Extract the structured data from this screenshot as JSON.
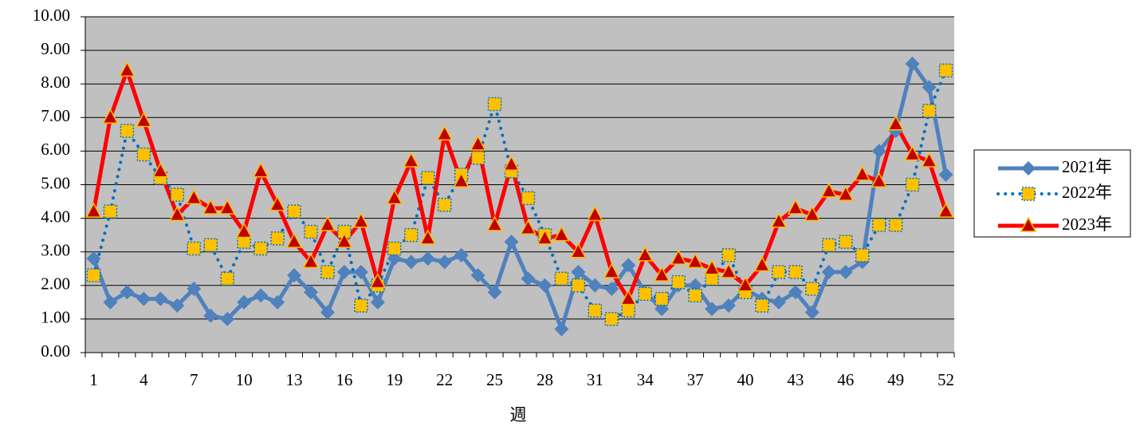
{
  "chart_data": {
    "type": "line",
    "x_label": "週",
    "categories": [
      "1",
      null,
      null,
      "4",
      null,
      null,
      "7",
      null,
      null,
      "10",
      null,
      null,
      "13",
      null,
      null,
      "16",
      null,
      null,
      "19",
      null,
      null,
      "22",
      null,
      null,
      "25",
      null,
      null,
      "28",
      null,
      null,
      "31",
      null,
      null,
      "34",
      null,
      null,
      "37",
      null,
      null,
      "40",
      null,
      null,
      "43",
      null,
      null,
      "46",
      null,
      null,
      "49",
      null,
      null,
      "52"
    ],
    "series": [
      {
        "name": "2021年",
        "color": "#4f81bd",
        "marker": "diamond",
        "style": "solid",
        "values": [
          2.8,
          1.5,
          1.8,
          1.6,
          1.6,
          1.4,
          1.9,
          1.1,
          1.0,
          1.5,
          1.7,
          1.5,
          2.3,
          1.8,
          1.2,
          2.4,
          2.4,
          1.5,
          2.8,
          2.7,
          2.8,
          2.7,
          2.9,
          2.3,
          1.8,
          3.3,
          2.2,
          2.0,
          0.7,
          2.4,
          2.0,
          1.9,
          2.6,
          1.8,
          1.3,
          2.0,
          2.0,
          1.3,
          1.4,
          1.9,
          1.6,
          1.5,
          1.8,
          1.2,
          2.4,
          2.4,
          2.7,
          6.0,
          6.6,
          8.6,
          7.9,
          5.3
        ]
      },
      {
        "name": "2022年",
        "color": "#0070c0",
        "marker": "square",
        "marker_color": "#ffc000",
        "style": "dotted",
        "values": [
          2.3,
          4.2,
          6.6,
          5.9,
          5.2,
          4.7,
          3.1,
          3.2,
          2.2,
          3.3,
          3.1,
          3.4,
          4.2,
          3.6,
          2.4,
          3.6,
          1.4,
          2.0,
          3.1,
          3.5,
          5.2,
          4.4,
          5.3,
          5.8,
          7.4,
          5.4,
          4.6,
          3.5,
          2.2,
          2.0,
          1.25,
          1.0,
          1.25,
          1.75,
          1.6,
          2.1,
          1.7,
          2.2,
          2.9,
          1.8,
          1.4,
          2.4,
          2.4,
          1.9,
          3.2,
          3.3,
          2.9,
          3.8,
          3.8,
          5.0,
          7.2,
          8.4
        ]
      },
      {
        "name": "2023年",
        "color": "#ff0000",
        "marker": "triangle",
        "marker_color": "#c00000",
        "style": "solid",
        "values": [
          4.2,
          7.0,
          8.4,
          6.9,
          5.4,
          4.1,
          4.6,
          4.3,
          4.3,
          3.6,
          5.4,
          4.4,
          3.3,
          2.7,
          3.8,
          3.3,
          3.9,
          2.1,
          4.6,
          5.7,
          3.4,
          6.5,
          5.1,
          6.2,
          3.8,
          5.6,
          3.7,
          3.4,
          3.5,
          3.0,
          4.1,
          2.4,
          1.6,
          2.9,
          2.3,
          2.8,
          2.7,
          2.5,
          2.4,
          2.0,
          2.6,
          3.9,
          4.3,
          4.1,
          4.8,
          4.7,
          5.3,
          5.1,
          6.8,
          5.9,
          5.7,
          4.2
        ]
      }
    ],
    "ylim": [
      0,
      10
    ],
    "yticks": [
      {
        "value": 0,
        "label": "0.00"
      },
      {
        "value": 1,
        "label": "1.00"
      },
      {
        "value": 2,
        "label": "2.00"
      },
      {
        "value": 3,
        "label": "3.00"
      },
      {
        "value": 4,
        "label": "4.00"
      },
      {
        "value": 5,
        "label": "5.00"
      },
      {
        "value": 6,
        "label": "6.00"
      },
      {
        "value": 7,
        "label": "7.00"
      },
      {
        "value": 8,
        "label": "8.00"
      },
      {
        "value": 9,
        "label": "9.00"
      },
      {
        "value": 10,
        "label": "10.00"
      }
    ],
    "grid": true,
    "legend": "right"
  }
}
